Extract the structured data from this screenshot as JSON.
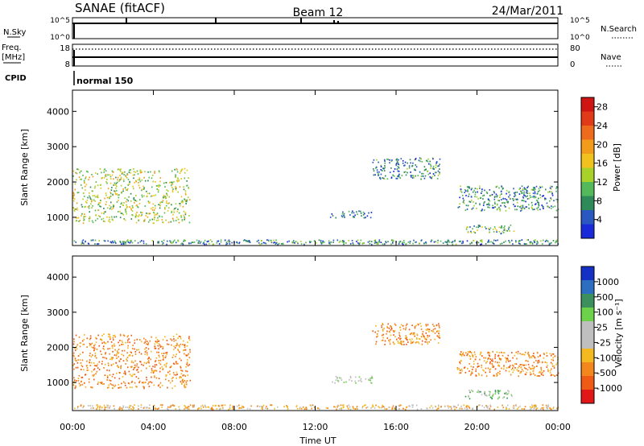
{
  "header": {
    "title": "SANAE (fitACF)",
    "beam": "Beam 12",
    "date": "24/Mar/2011"
  },
  "top_panels": {
    "nsky_label": "N.Sky",
    "nsky_ticks": [
      "10^5",
      "10^0"
    ],
    "nsearch_label": "N.Search",
    "nsearch_ticks": [
      "10^5",
      "10^0"
    ],
    "freq_label_1": "Freq.",
    "freq_label_2": "[MHz]",
    "freq_ticks": [
      "18",
      "8"
    ],
    "nave_label": "Nave",
    "nave_ticks": [
      "80",
      "0"
    ],
    "cpid_label": "CPID",
    "cpid_value": "normal 150"
  },
  "colors": {
    "power_scale": [
      "#1a2ad8",
      "#2a58c0",
      "#2f8a5a",
      "#53b95a",
      "#a8d12a",
      "#f0c21e",
      "#f39c1c",
      "#ee6a1c",
      "#e03a18",
      "#cf1414"
    ],
    "velocity_scale": [
      "#e21717",
      "#ef5a14",
      "#f3861c",
      "#f4b820",
      "#bfbfbf",
      "#bfbfbf",
      "#6bd24a",
      "#3e8f5e",
      "#2c6fc0",
      "#1530c4"
    ]
  },
  "chart_data": [
    {
      "type": "heatmap",
      "name": "power",
      "xlabel": "",
      "ylabel": "Slant Range [km]",
      "xlim": [
        "00:00",
        "24:00"
      ],
      "ylim": [
        200,
        4600
      ],
      "y_ticks": [
        "1000",
        "2000",
        "3000",
        "4000"
      ],
      "colorbar": {
        "label": "Power [dB]",
        "ticks": [
          "4",
          "8",
          "12",
          "16",
          "20",
          "24",
          "28"
        ],
        "range": [
          0,
          30
        ]
      },
      "clusters": [
        {
          "t": [
            0.0,
            5.8
          ],
          "range": [
            850,
            2400
          ],
          "value": 14
        },
        {
          "t": [
            0.0,
            24.0
          ],
          "range": [
            250,
            380
          ],
          "value": 6
        },
        {
          "t": [
            12.7,
            14.8
          ],
          "range": [
            1000,
            1200
          ],
          "value": 4
        },
        {
          "t": [
            19.4,
            21.8
          ],
          "range": [
            550,
            800
          ],
          "value": 10
        },
        {
          "t": [
            19.0,
            24.0
          ],
          "range": [
            1200,
            1900
          ],
          "value": 5
        },
        {
          "t": [
            14.8,
            18.2
          ],
          "range": [
            2100,
            2700
          ],
          "value": 5
        }
      ]
    },
    {
      "type": "heatmap",
      "name": "velocity",
      "xlabel": "Time UT",
      "ylabel": "Slant Range [km]",
      "xlim": [
        "00:00",
        "24:00"
      ],
      "ylim": [
        200,
        4600
      ],
      "x_ticks": [
        "00:00",
        "04:00",
        "08:00",
        "12:00",
        "16:00",
        "20:00",
        "00:00"
      ],
      "y_ticks": [
        "1000",
        "2000",
        "3000",
        "4000"
      ],
      "colorbar": {
        "label": "Velocity [m s⁻¹]",
        "ticks": [
          "1000",
          "500",
          "100",
          "25",
          "-25",
          "-100",
          "-500",
          "-1000"
        ]
      },
      "clusters": [
        {
          "t": [
            0.0,
            5.8
          ],
          "range": [
            850,
            2400
          ],
          "value": -200
        },
        {
          "t": [
            0.0,
            24.0
          ],
          "range": [
            250,
            380
          ],
          "value": -50
        },
        {
          "t": [
            12.7,
            14.8
          ],
          "range": [
            1000,
            1200
          ],
          "value": 0
        },
        {
          "t": [
            19.4,
            21.8
          ],
          "range": [
            550,
            800
          ],
          "value": 60
        },
        {
          "t": [
            19.0,
            24.0
          ],
          "range": [
            1200,
            1900
          ],
          "value": -150
        },
        {
          "t": [
            14.8,
            18.2
          ],
          "range": [
            2100,
            2700
          ],
          "value": -200
        }
      ]
    }
  ]
}
